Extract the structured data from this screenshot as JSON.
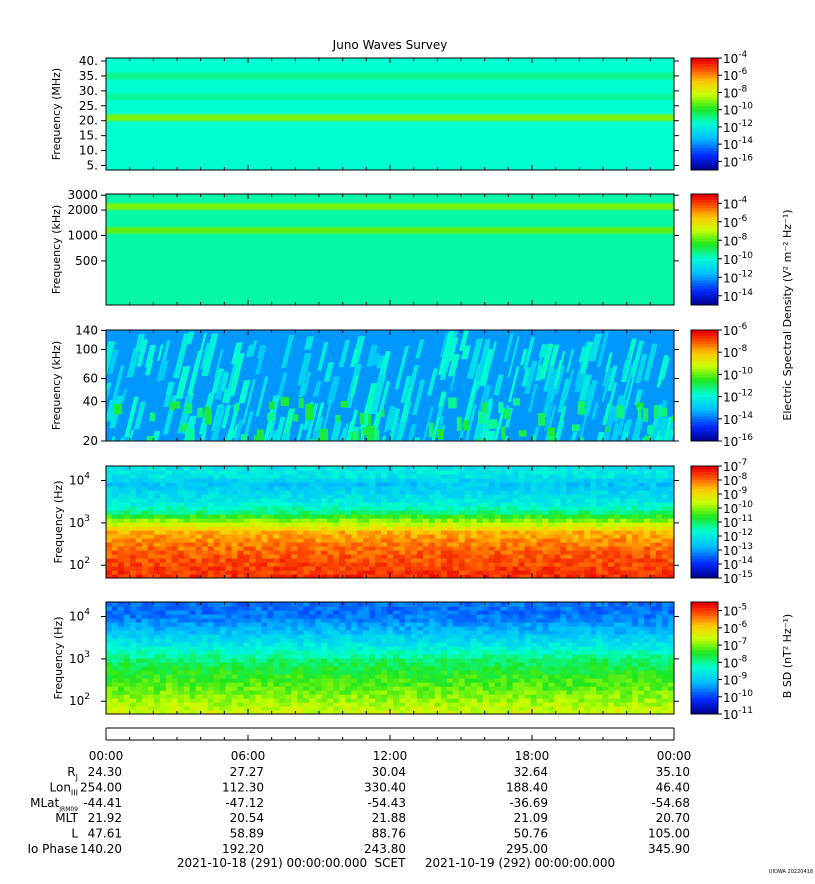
{
  "title": "Juno Waves Survey",
  "footer_tag": "UIOWA 20220418",
  "time_axis": {
    "ticks": [
      "00:00",
      "06:00",
      "12:00",
      "18:00",
      "00:00"
    ],
    "start": "2021-10-18 (291) 00:00:00.000",
    "frame": "SCET",
    "end": "2021-10-19 (292) 00:00:00.000"
  },
  "ephemeris": [
    {
      "label": "R",
      "sub": "J",
      "values": [
        "24.30",
        "27.27",
        "30.04",
        "32.64",
        "35.10"
      ]
    },
    {
      "label": "Lon",
      "sub": "III",
      "values": [
        "254.00",
        "112.30",
        "330.40",
        "188.40",
        "46.40"
      ]
    },
    {
      "label": "MLat",
      "sub": "JRM09",
      "values": [
        "-44.41",
        "-47.12",
        "-54.43",
        "-36.69",
        "-54.68"
      ]
    },
    {
      "label": "MLT",
      "sub": "",
      "values": [
        "21.92",
        "20.54",
        "21.88",
        "21.09",
        "20.70"
      ]
    },
    {
      "label": "L",
      "sub": "",
      "values": [
        "47.61",
        "58.89",
        "88.76",
        "50.76",
        "105.00"
      ]
    },
    {
      "label": "Io Phase",
      "sub": "",
      "values": [
        "140.20",
        "192.20",
        "243.80",
        "295.00",
        "345.90"
      ]
    }
  ],
  "colorbar_labels": {
    "electric": "Electric Spectral Density (V² m⁻² Hz⁻¹)",
    "magnetic": "B SD (nT² Hz⁻¹)"
  },
  "chart_data": [
    {
      "type": "heatmap",
      "ylabel": "Frequency (MHz)",
      "y_scale": "linear",
      "ylim": [
        3.5,
        41
      ],
      "yticks": [
        {
          "v": 5,
          "t": "5."
        },
        {
          "v": 10,
          "t": "10."
        },
        {
          "v": 15,
          "t": "15."
        },
        {
          "v": 20,
          "t": "20."
        },
        {
          "v": 25,
          "t": "25."
        },
        {
          "v": 30,
          "t": "30."
        },
        {
          "v": 35,
          "t": "35."
        },
        {
          "v": 40,
          "t": "40."
        }
      ],
      "colorbar": {
        "min_exp": -17,
        "max_exp": -4,
        "ticks": [
          -4,
          -6,
          -8,
          -10,
          -12,
          -14,
          -16
        ]
      },
      "background_level": 0.42,
      "bands": [
        {
          "y": 21,
          "level": 0.62
        },
        {
          "y": 35,
          "level": 0.47
        },
        {
          "y": 28,
          "level": 0.46
        }
      ]
    },
    {
      "type": "heatmap",
      "ylabel": "Frequency (kHz)",
      "y_scale": "log",
      "ylim": [
        150,
        3100
      ],
      "yticks": [
        {
          "v": 500,
          "t": "500"
        },
        {
          "v": 1000,
          "t": "1000"
        },
        {
          "v": 2000,
          "t": "2000"
        },
        {
          "v": 3000,
          "t": "3000"
        }
      ],
      "colorbar": {
        "min_exp": -15,
        "max_exp": -3,
        "ticks": [
          -4,
          -6,
          -8,
          -10,
          -12,
          -14
        ]
      },
      "background_level": 0.45,
      "bands": [
        {
          "y": 2200,
          "level": 0.62
        },
        {
          "y": 1150,
          "level": 0.6
        }
      ]
    },
    {
      "type": "heatmap",
      "ylabel": "Frequency (kHz)",
      "y_scale": "log",
      "ylim": [
        20,
        141
      ],
      "yticks": [
        {
          "v": 20,
          "t": "20"
        },
        {
          "v": 40,
          "t": "40"
        },
        {
          "v": 60,
          "t": "60"
        },
        {
          "v": 100,
          "t": "100"
        },
        {
          "v": 140,
          "t": "140"
        }
      ],
      "colorbar": {
        "min_exp": -16,
        "max_exp": -6,
        "ticks": [
          -6,
          -8,
          -10,
          -12,
          -14,
          -16
        ]
      },
      "background_level": 0.24,
      "bands": []
    },
    {
      "type": "heatmap",
      "ylabel": "Frequency (Hz)",
      "y_scale": "log",
      "ylim": [
        50,
        22000
      ],
      "yticks": [
        {
          "v": 100,
          "t": "10",
          "e": "2"
        },
        {
          "v": 1000,
          "t": "10",
          "e": "3"
        },
        {
          "v": 10000,
          "t": "10",
          "e": "4"
        }
      ],
      "colorbar": {
        "min_exp": -15,
        "max_exp": -7,
        "ticks": [
          -7,
          -8,
          -9,
          -10,
          -11,
          -12,
          -13,
          -14,
          -15
        ]
      },
      "profile": [
        [
          50,
          0.95
        ],
        [
          200,
          0.9
        ],
        [
          600,
          0.82
        ],
        [
          1200,
          0.62
        ],
        [
          1800,
          0.48
        ],
        [
          3000,
          0.38
        ],
        [
          6000,
          0.32
        ],
        [
          9000,
          0.3
        ],
        [
          14000,
          0.38
        ],
        [
          22000,
          0.36
        ]
      ]
    },
    {
      "type": "heatmap",
      "ylabel": "Frequency (Hz)",
      "y_scale": "log",
      "ylim": [
        50,
        22000
      ],
      "yticks": [
        {
          "v": 100,
          "t": "10",
          "e": "2"
        },
        {
          "v": 1000,
          "t": "10",
          "e": "3"
        },
        {
          "v": 10000,
          "t": "10",
          "e": "4"
        }
      ],
      "colorbar": {
        "min_exp": -11,
        "max_exp": -4.5,
        "ticks": [
          -5,
          -6,
          -7,
          -8,
          -9,
          -10,
          -11
        ]
      },
      "profile": [
        [
          50,
          0.7
        ],
        [
          150,
          0.62
        ],
        [
          400,
          0.56
        ],
        [
          900,
          0.5
        ],
        [
          2000,
          0.38
        ],
        [
          4000,
          0.3
        ],
        [
          7000,
          0.24
        ],
        [
          12000,
          0.2
        ],
        [
          22000,
          0.2
        ]
      ]
    }
  ]
}
